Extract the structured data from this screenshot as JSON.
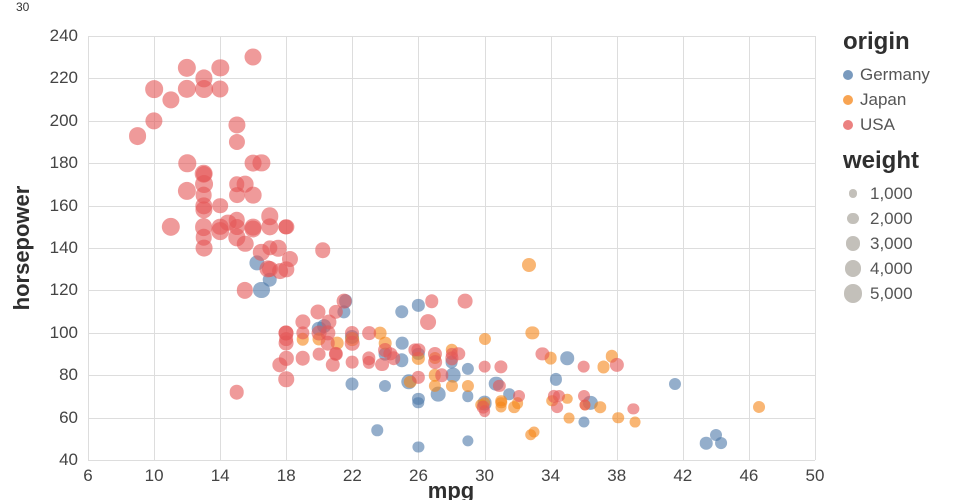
{
  "page": {
    "stray_label": "30"
  },
  "chart_data": {
    "type": "scatter",
    "title": "",
    "xlabel": "mpg",
    "ylabel": "horsepower",
    "xlim": [
      6,
      50
    ],
    "ylim": [
      40,
      240
    ],
    "x_ticks": [
      6,
      10,
      14,
      18,
      22,
      26,
      30,
      34,
      38,
      42,
      46,
      50
    ],
    "y_ticks": [
      40,
      60,
      80,
      100,
      120,
      140,
      160,
      180,
      200,
      220,
      240
    ],
    "grid": true,
    "point_opacity": 0.6,
    "colors": {
      "Germany": "#4c78a8",
      "Japan": "#f58518",
      "USA": "#e45756",
      "legend_symbol": "#b9b5ae"
    },
    "legend": {
      "position": "right",
      "origin_title": "origin",
      "origin_items": [
        {
          "label": "Germany",
          "color": "#4c78a8"
        },
        {
          "label": "Japan",
          "color": "#f58518"
        },
        {
          "label": "USA",
          "color": "#e45756"
        }
      ],
      "weight_title": "weight",
      "weight_items": [
        {
          "label": "1,000",
          "value": 1000
        },
        {
          "label": "2,000",
          "value": 2000
        },
        {
          "label": "3,000",
          "value": 3000
        },
        {
          "label": "4,000",
          "value": 4000
        },
        {
          "label": "5,000",
          "value": 5000
        }
      ]
    },
    "columns": [
      "mpg",
      "horsepower",
      "weight",
      "origin"
    ],
    "points": [
      [
        26,
        46,
        1835,
        "Germany"
      ],
      [
        29,
        70,
        1937,
        "Germany"
      ],
      [
        24,
        90,
        2430,
        "Germany"
      ],
      [
        25,
        95,
        2375,
        "Germany"
      ],
      [
        26,
        113,
        2234,
        "Germany"
      ],
      [
        21.5,
        110,
        2600,
        "Germany"
      ],
      [
        20.3,
        103,
        2830,
        "Germany"
      ],
      [
        17,
        125,
        3140,
        "Germany"
      ],
      [
        16.2,
        133,
        3410,
        "Germany"
      ],
      [
        16.5,
        120,
        3820,
        "Germany"
      ],
      [
        25,
        110,
        2694,
        "Germany"
      ],
      [
        21.6,
        115,
        2795,
        "Germany"
      ],
      [
        25,
        87,
        2672,
        "Germany"
      ],
      [
        28,
        86,
        2464,
        "Germany"
      ],
      [
        27.2,
        71,
        3190,
        "Germany"
      ],
      [
        30.7,
        76,
        3160,
        "Germany"
      ],
      [
        31.5,
        71,
        1990,
        "Germany"
      ],
      [
        36.4,
        67,
        3025,
        "Germany"
      ],
      [
        41.5,
        76,
        2144,
        "Germany"
      ],
      [
        43.4,
        48,
        2335,
        "Germany"
      ],
      [
        44.3,
        48,
        2085,
        "Germany"
      ],
      [
        44,
        52,
        2130,
        "Germany"
      ],
      [
        24,
        75,
        2158,
        "Germany"
      ],
      [
        29,
        49,
        1867,
        "Germany"
      ],
      [
        26,
        69,
        2189,
        "Germany"
      ],
      [
        26,
        90,
        2265,
        "Germany"
      ],
      [
        35,
        88,
        2720,
        "Germany"
      ],
      [
        34.3,
        78,
        2188,
        "Germany"
      ],
      [
        28.1,
        80,
        3230,
        "Germany"
      ],
      [
        30,
        67,
        3250,
        "Germany"
      ],
      [
        25.4,
        77,
        3530,
        "Germany"
      ],
      [
        22,
        98,
        2945,
        "Germany"
      ],
      [
        20,
        102,
        3150,
        "Germany"
      ],
      [
        29,
        83,
        2219,
        "Germany"
      ],
      [
        26,
        67,
        1963,
        "Germany"
      ],
      [
        22,
        76,
        2511,
        "Germany"
      ],
      [
        36,
        58,
        1825,
        "Germany"
      ],
      [
        23.5,
        54,
        1950,
        "Germany"
      ],
      [
        24,
        95,
        2372,
        "Japan"
      ],
      [
        27,
        88,
        2130,
        "Japan"
      ],
      [
        26,
        88,
        2245,
        "Japan"
      ],
      [
        31,
        65,
        1773,
        "Japan"
      ],
      [
        35,
        69,
        1613,
        "Japan"
      ],
      [
        31,
        67,
        1950,
        "Japan"
      ],
      [
        33,
        53,
        1795,
        "Japan"
      ],
      [
        32.7,
        132,
        2910,
        "Japan"
      ],
      [
        23.7,
        100,
        2420,
        "Japan"
      ],
      [
        28,
        92,
        2288,
        "Japan"
      ],
      [
        19,
        97,
        2330,
        "Japan"
      ],
      [
        20,
        97,
        2506,
        "Japan"
      ],
      [
        22,
        97,
        2770,
        "Japan"
      ],
      [
        32.9,
        100,
        2615,
        "Japan"
      ],
      [
        34.1,
        68,
        1985,
        "Japan"
      ],
      [
        35.1,
        60,
        1760,
        "Japan"
      ],
      [
        38.1,
        60,
        1968,
        "Japan"
      ],
      [
        31.8,
        65,
        2020,
        "Japan"
      ],
      [
        30,
        97,
        2155,
        "Japan"
      ],
      [
        37.2,
        84,
        2490,
        "Japan"
      ],
      [
        34,
        88,
        2395,
        "Japan"
      ],
      [
        32.8,
        52,
        1985,
        "Japan"
      ],
      [
        37,
        65,
        1975,
        "Japan"
      ],
      [
        32,
        67,
        2065,
        "Japan"
      ],
      [
        30,
        67,
        1985,
        "Japan"
      ],
      [
        28,
        75,
        2155,
        "Japan"
      ],
      [
        29,
        75,
        2171,
        "Japan"
      ],
      [
        21.1,
        95,
        2375,
        "Japan"
      ],
      [
        36.1,
        66,
        1800,
        "Japan"
      ],
      [
        39.1,
        58,
        1755,
        "Japan"
      ],
      [
        37.7,
        89,
        2279,
        "Japan"
      ],
      [
        46.6,
        65,
        2110,
        "Japan"
      ],
      [
        27,
        75,
        2210,
        "Japan"
      ],
      [
        27,
        80,
        2290,
        "Japan"
      ],
      [
        31,
        68,
        1970,
        "Japan"
      ],
      [
        25.5,
        77,
        2265,
        "Japan"
      ],
      [
        29.8,
        66,
        1975,
        "Japan"
      ],
      [
        9,
        193,
        4732,
        "USA"
      ],
      [
        10,
        215,
        4615,
        "USA"
      ],
      [
        11,
        210,
        4382,
        "USA"
      ],
      [
        10,
        200,
        4376,
        "USA"
      ],
      [
        12,
        215,
        4952,
        "USA"
      ],
      [
        14,
        225,
        4461,
        "USA"
      ],
      [
        16,
        230,
        4278,
        "USA"
      ],
      [
        13,
        220,
        4354,
        "USA"
      ],
      [
        15,
        198,
        4341,
        "USA"
      ],
      [
        14,
        215,
        4312,
        "USA"
      ],
      [
        15,
        190,
        3850,
        "USA"
      ],
      [
        13,
        175,
        5140,
        "USA"
      ],
      [
        12,
        180,
        4499,
        "USA"
      ],
      [
        12,
        167,
        4906,
        "USA"
      ],
      [
        13,
        170,
        4746,
        "USA"
      ],
      [
        13,
        150,
        4699,
        "USA"
      ],
      [
        13,
        158,
        4363,
        "USA"
      ],
      [
        13,
        145,
        4055,
        "USA"
      ],
      [
        14,
        148,
        4657,
        "USA"
      ],
      [
        15,
        165,
        3693,
        "USA"
      ],
      [
        14,
        160,
        3609,
        "USA"
      ],
      [
        15,
        170,
        3563,
        "USA"
      ],
      [
        15,
        150,
        3761,
        "USA"
      ],
      [
        14,
        150,
        4077,
        "USA"
      ],
      [
        16,
        150,
        4190,
        "USA"
      ],
      [
        17,
        155,
        4502,
        "USA"
      ],
      [
        17,
        150,
        4456,
        "USA"
      ],
      [
        15,
        145,
        4440,
        "USA"
      ],
      [
        16,
        165,
        4141,
        "USA"
      ],
      [
        15,
        153,
        4034,
        "USA"
      ],
      [
        18,
        150,
        3436,
        "USA"
      ],
      [
        18,
        150,
        3433,
        "USA"
      ],
      [
        17,
        140,
        3449,
        "USA"
      ],
      [
        13,
        165,
        4142,
        "USA"
      ],
      [
        13,
        160,
        4456,
        "USA"
      ],
      [
        13,
        140,
        4215,
        "USA"
      ],
      [
        14.5,
        152,
        4215,
        "USA"
      ],
      [
        15.5,
        170,
        4165,
        "USA"
      ],
      [
        16.5,
        138,
        3955,
        "USA"
      ],
      [
        16,
        149,
        4335,
        "USA"
      ],
      [
        11,
        150,
        4997,
        "USA"
      ],
      [
        12,
        225,
        4951,
        "USA"
      ],
      [
        13,
        215,
        4735,
        "USA"
      ],
      [
        16.5,
        180,
        4380,
        "USA"
      ],
      [
        16,
        180,
        4220,
        "USA"
      ],
      [
        13,
        175,
        3821,
        "USA"
      ],
      [
        15.5,
        120,
        3962,
        "USA"
      ],
      [
        18,
        130,
        3504,
        "USA"
      ],
      [
        17.5,
        140,
        4080,
        "USA"
      ],
      [
        17.6,
        129,
        3725,
        "USA"
      ],
      [
        18.2,
        135,
        3830,
        "USA"
      ],
      [
        20.2,
        139,
        3570,
        "USA"
      ],
      [
        19.9,
        110,
        3365,
        "USA"
      ],
      [
        16.9,
        130,
        4360,
        "USA"
      ],
      [
        15.5,
        142,
        4054,
        "USA"
      ],
      [
        17,
        130,
        3840,
        "USA"
      ],
      [
        21.5,
        115,
        3245,
        "USA"
      ],
      [
        20.6,
        105,
        3380,
        "USA"
      ],
      [
        20.5,
        95,
        3155,
        "USA"
      ],
      [
        20.5,
        100,
        3430,
        "USA"
      ],
      [
        19,
        105,
        3439,
        "USA"
      ],
      [
        18,
        100,
        3288,
        "USA"
      ],
      [
        20,
        100,
        3282,
        "USA"
      ],
      [
        21,
        110,
        3039,
        "USA"
      ],
      [
        22,
        95,
        3155,
        "USA"
      ],
      [
        22,
        100,
        2901,
        "USA"
      ],
      [
        23,
        100,
        2789,
        "USA"
      ],
      [
        18,
        97,
        2774,
        "USA"
      ],
      [
        21,
        90,
        3003,
        "USA"
      ],
      [
        20,
        90,
        2408,
        "USA"
      ],
      [
        28.8,
        115,
        3245,
        "USA"
      ],
      [
        26.8,
        115,
        2700,
        "USA"
      ],
      [
        26.6,
        105,
        3725,
        "USA"
      ],
      [
        18,
        78,
        3574,
        "USA"
      ],
      [
        20.8,
        85,
        3070,
        "USA"
      ],
      [
        17.6,
        85,
        3465,
        "USA"
      ],
      [
        18,
        88,
        3021,
        "USA"
      ],
      [
        18,
        100,
        3365,
        "USA"
      ],
      [
        18,
        95,
        3264,
        "USA"
      ],
      [
        19,
        100,
        2615,
        "USA"
      ],
      [
        21,
        90,
        2648,
        "USA"
      ],
      [
        22,
        86,
        2395,
        "USA"
      ],
      [
        23,
        88,
        2639,
        "USA"
      ],
      [
        28,
        90,
        2264,
        "USA"
      ],
      [
        23,
        86,
        2220,
        "USA"
      ],
      [
        19,
        88,
        3139,
        "USA"
      ],
      [
        28.4,
        90,
        2670,
        "USA"
      ],
      [
        33.5,
        90,
        2556,
        "USA"
      ],
      [
        30.9,
        75,
        2230,
        "USA"
      ],
      [
        34.2,
        70,
        2200,
        "USA"
      ],
      [
        34.5,
        70,
        2150,
        "USA"
      ],
      [
        34.4,
        65,
        2045,
        "USA"
      ],
      [
        36,
        70,
        2125,
        "USA"
      ],
      [
        30,
        84,
        2385,
        "USA"
      ],
      [
        25.8,
        92,
        2620,
        "USA"
      ],
      [
        28,
        88,
        2605,
        "USA"
      ],
      [
        31,
        84,
        2575,
        "USA"
      ],
      [
        24,
        92,
        2865,
        "USA"
      ],
      [
        24.3,
        90,
        2650,
        "USA"
      ],
      [
        30,
        63,
        2051,
        "USA"
      ],
      [
        32.1,
        70,
        2120,
        "USA"
      ],
      [
        36.1,
        66,
        1800,
        "USA"
      ],
      [
        26,
        79,
        2255,
        "USA"
      ],
      [
        27,
        86,
        2790,
        "USA"
      ],
      [
        26,
        92,
        2585,
        "USA"
      ],
      [
        36,
        84,
        2370,
        "USA"
      ],
      [
        27,
        90,
        2950,
        "USA"
      ],
      [
        24.5,
        88,
        2740,
        "USA"
      ],
      [
        23.8,
        85,
        2855,
        "USA"
      ],
      [
        27.4,
        80,
        2670,
        "USA"
      ],
      [
        29.9,
        65,
        2380,
        "USA"
      ],
      [
        39,
        64,
        1875,
        "USA"
      ],
      [
        38,
        85,
        3015,
        "USA"
      ],
      [
        15,
        72,
        3158,
        "USA"
      ]
    ]
  }
}
